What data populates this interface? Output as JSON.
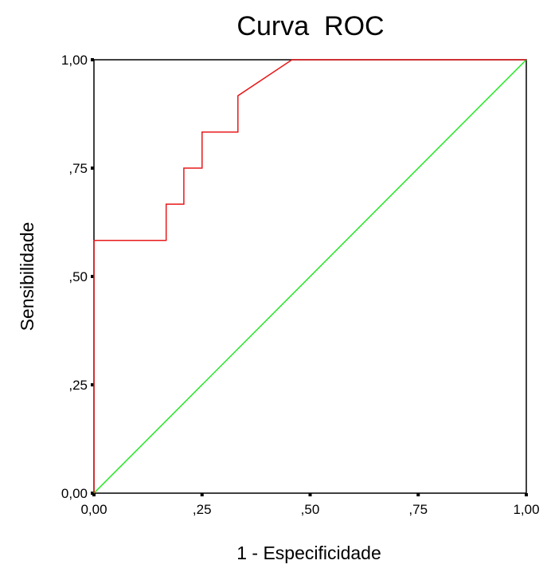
{
  "chart_data": {
    "type": "line",
    "title": "Curva  ROC",
    "xlabel": "1 - Especificidade",
    "ylabel": "Sensibilidade",
    "xlim": [
      0,
      1
    ],
    "ylim": [
      0,
      1
    ],
    "x_ticks": [
      0,
      0.25,
      0.5,
      0.75,
      1
    ],
    "y_ticks": [
      0,
      0.25,
      0.5,
      0.75,
      1
    ],
    "x_tick_labels": [
      "0,00",
      ",25",
      ",50",
      ",75",
      "1,00"
    ],
    "y_tick_labels": [
      "0,00",
      ",25",
      ",50",
      ",75",
      "1,00"
    ],
    "grid": false,
    "legend": "none",
    "series": [
      {
        "color": "#e8191b",
        "x": [
          0,
          0,
          0.167,
          0.167,
          0.208,
          0.208,
          0.25,
          0.25,
          0.333,
          0.333,
          0.458,
          1
        ],
        "y": [
          0,
          0.583,
          0.583,
          0.667,
          0.667,
          0.75,
          0.75,
          0.833,
          0.833,
          0.917,
          1,
          1
        ]
      },
      {
        "color": "#22e822",
        "x": [
          0,
          1
        ],
        "y": [
          0,
          1
        ]
      }
    ]
  }
}
